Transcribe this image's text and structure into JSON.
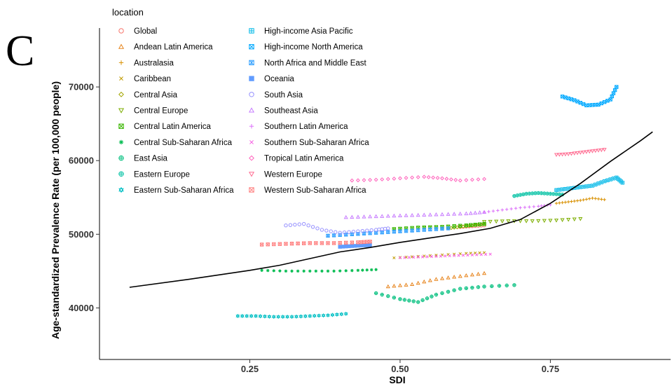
{
  "panel_letter": "C",
  "chart_data": {
    "type": "scatter",
    "xlabel": "SDI",
    "ylabel": "Age-standardized Prevalence Rate (per 100,000 people)",
    "xlim": [
      0.0,
      0.95
    ],
    "ylim": [
      33000,
      78000
    ],
    "x_ticks": [
      0.25,
      0.5,
      0.75
    ],
    "x_tick_labels": [
      "0.25",
      "0.50",
      "0.75"
    ],
    "y_ticks": [
      40000,
      50000,
      60000,
      70000
    ],
    "y_tick_labels": [
      "40000",
      "50000",
      "60000",
      "70000"
    ],
    "grid": false,
    "legend_title": "location",
    "legend_placement": "top-left",
    "series": [
      {
        "name": "Global",
        "color": "#F8766D",
        "shape": "circle",
        "x": [
          0.6,
          0.62,
          0.64
        ],
        "y": [
          51000,
          51100,
          51200
        ]
      },
      {
        "name": "Andean Latin America",
        "color": "#E7851E",
        "shape": "triangle",
        "x": [
          0.48,
          0.52,
          0.56,
          0.6,
          0.64
        ],
        "y": [
          42900,
          43200,
          43900,
          44300,
          44700
        ]
      },
      {
        "name": "Australasia",
        "color": "#D89000",
        "shape": "plus",
        "x": [
          0.76,
          0.78,
          0.8,
          0.82,
          0.84
        ],
        "y": [
          54200,
          54400,
          54600,
          54900,
          54700
        ]
      },
      {
        "name": "Caribbean",
        "color": "#C09B00",
        "shape": "x",
        "x": [
          0.49,
          0.53,
          0.57,
          0.61,
          0.64
        ],
        "y": [
          46800,
          47000,
          47200,
          47400,
          47500
        ]
      },
      {
        "name": "Central Asia",
        "color": "#A3A500",
        "shape": "diamond",
        "x": [
          0.58,
          0.6,
          0.62,
          0.64
        ],
        "y": [
          50800,
          51000,
          51200,
          51400
        ]
      },
      {
        "name": "Central Europe",
        "color": "#7CAE00",
        "shape": "triangle-down",
        "x": [
          0.64,
          0.68,
          0.72,
          0.76,
          0.8
        ],
        "y": [
          51700,
          51800,
          51800,
          51900,
          52100
        ]
      },
      {
        "name": "Central Latin America",
        "color": "#39B600",
        "shape": "square-x",
        "x": [
          0.49,
          0.53,
          0.57,
          0.61,
          0.64
        ],
        "y": [
          50700,
          50900,
          51000,
          51200,
          51400
        ]
      },
      {
        "name": "Central Sub-Saharan Africa",
        "color": "#00BB4E",
        "shape": "asterisk",
        "x": [
          0.27,
          0.31,
          0.35,
          0.39,
          0.43,
          0.46
        ],
        "y": [
          45100,
          45000,
          45000,
          45000,
          45100,
          45200
        ]
      },
      {
        "name": "East Asia",
        "color": "#00BF7D",
        "shape": "circle-plus",
        "x": [
          0.46,
          0.5,
          0.53,
          0.56,
          0.6,
          0.64,
          0.69
        ],
        "y": [
          42000,
          41200,
          40800,
          41800,
          42600,
          42900,
          43100
        ]
      },
      {
        "name": "Eastern Europe",
        "color": "#00C1A3",
        "shape": "circle-plus",
        "x": [
          0.69,
          0.71,
          0.73,
          0.75,
          0.77
        ],
        "y": [
          55200,
          55500,
          55600,
          55500,
          55400
        ]
      },
      {
        "name": "Eastern Sub-Saharan Africa",
        "color": "#00BFC4",
        "shape": "star",
        "x": [
          0.23,
          0.26,
          0.29,
          0.32,
          0.35,
          0.38,
          0.41
        ],
        "y": [
          38900,
          38900,
          38800,
          38800,
          38900,
          39000,
          39200
        ]
      },
      {
        "name": "High-income Asia Pacific",
        "color": "#00B8E7",
        "shape": "square-plus",
        "x": [
          0.76,
          0.78,
          0.8,
          0.82,
          0.84,
          0.86,
          0.87
        ],
        "y": [
          56000,
          56200,
          56400,
          56600,
          57200,
          57700,
          57000
        ]
      },
      {
        "name": "High-income North America",
        "color": "#00A9FF",
        "shape": "square-x",
        "x": [
          0.77,
          0.79,
          0.81,
          0.83,
          0.85,
          0.86
        ],
        "y": [
          68700,
          68200,
          67500,
          67600,
          68300,
          70000
        ]
      },
      {
        "name": "North Africa and Middle East",
        "color": "#35A2FF",
        "shape": "square-star",
        "x": [
          0.38,
          0.42,
          0.46,
          0.5,
          0.54,
          0.58
        ],
        "y": [
          49800,
          50000,
          50200,
          50400,
          50600,
          50800
        ]
      },
      {
        "name": "Oceania",
        "color": "#619CFF",
        "shape": "square",
        "x": [
          0.4,
          0.42,
          0.44,
          0.45
        ],
        "y": [
          48300,
          48400,
          48500,
          48500
        ]
      },
      {
        "name": "South Asia",
        "color": "#9590FF",
        "shape": "circle",
        "x": [
          0.31,
          0.34,
          0.37,
          0.4,
          0.43,
          0.46,
          0.48
        ],
        "y": [
          51200,
          51400,
          50600,
          50200,
          50400,
          50600,
          50800
        ]
      },
      {
        "name": "Southeast Asia",
        "color": "#C77CFF",
        "shape": "triangle",
        "x": [
          0.41,
          0.45,
          0.49,
          0.53,
          0.57,
          0.61,
          0.64
        ],
        "y": [
          52300,
          52400,
          52500,
          52600,
          52700,
          52800,
          53000
        ]
      },
      {
        "name": "Southern Latin America",
        "color": "#DC71FA",
        "shape": "plus",
        "x": [
          0.64,
          0.67,
          0.7,
          0.73,
          0.75
        ],
        "y": [
          53000,
          53300,
          53600,
          53800,
          54000
        ]
      },
      {
        "name": "Southern Sub-Saharan Africa",
        "color": "#F564E3",
        "shape": "x",
        "x": [
          0.5,
          0.53,
          0.56,
          0.59,
          0.62,
          0.65
        ],
        "y": [
          46800,
          46900,
          47000,
          47100,
          47200,
          47300
        ]
      },
      {
        "name": "Tropical Latin America",
        "color": "#FF62BC",
        "shape": "diamond",
        "x": [
          0.42,
          0.46,
          0.5,
          0.54,
          0.57,
          0.6,
          0.64
        ],
        "y": [
          57300,
          57400,
          57600,
          57800,
          57600,
          57300,
          57500
        ]
      },
      {
        "name": "Western Europe",
        "color": "#FF6C91",
        "shape": "triangle-down",
        "x": [
          0.76,
          0.78,
          0.8,
          0.82,
          0.84
        ],
        "y": [
          60800,
          60900,
          61100,
          61300,
          61500
        ]
      },
      {
        "name": "Western Sub-Saharan Africa",
        "color": "#FF7F7F",
        "shape": "square-x",
        "x": [
          0.27,
          0.31,
          0.35,
          0.39,
          0.43,
          0.45
        ],
        "y": [
          48600,
          48700,
          48800,
          48800,
          48900,
          49000
        ]
      }
    ],
    "trend_line": {
      "color": "#000000",
      "x": [
        0.05,
        0.15,
        0.25,
        0.3,
        0.35,
        0.4,
        0.45,
        0.5,
        0.55,
        0.6,
        0.65,
        0.7,
        0.75,
        0.8,
        0.85,
        0.9,
        0.92
      ],
      "y": [
        42800,
        43900,
        45100,
        45800,
        46700,
        47600,
        48200,
        48900,
        49500,
        50100,
        50800,
        52000,
        54200,
        56900,
        59900,
        62700,
        63900
      ]
    }
  }
}
